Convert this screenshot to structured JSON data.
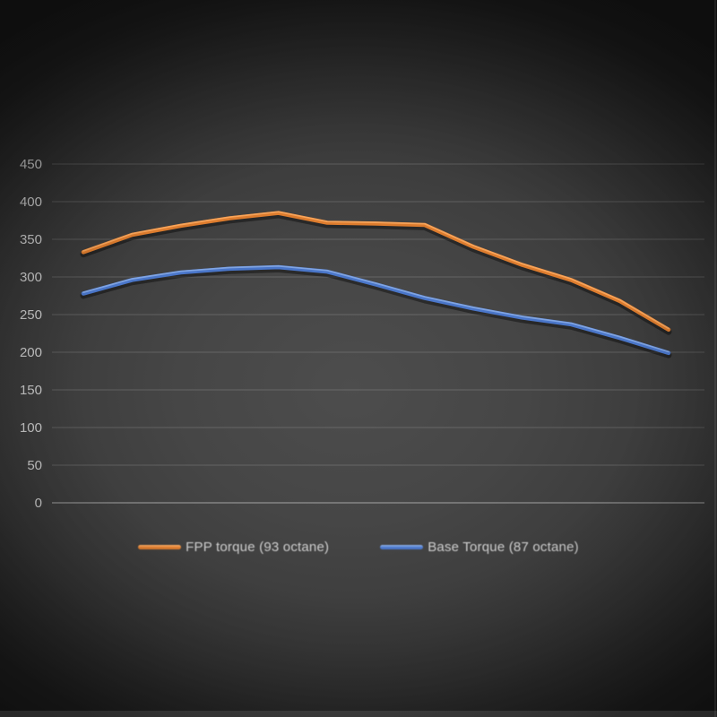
{
  "page": {
    "background_center_color": "#4d4d4d",
    "background_edge_color": "#191919"
  },
  "chart_data": {
    "type": "line",
    "title": "",
    "xlabel": "",
    "ylabel": "",
    "x_axis_labels_visible": false,
    "x": [
      1,
      2,
      3,
      4,
      5,
      6,
      7,
      8,
      9,
      10,
      11,
      12,
      13
    ],
    "series": [
      {
        "name": "FPP torque (93 octane)",
        "color": "#dd7c2e",
        "highlight": "#ffb26a",
        "values": [
          333,
          356,
          368,
          378,
          385,
          372,
          371,
          369,
          340,
          316,
          296,
          268,
          230
        ]
      },
      {
        "name": "Base Torque (87 octane)",
        "color": "#4a76c9",
        "highlight": "#93b4ea",
        "values": [
          278,
          296,
          306,
          311,
          313,
          307,
          290,
          272,
          258,
          246,
          237,
          219,
          199
        ]
      }
    ],
    "ylim": [
      0,
      450
    ],
    "y_ticks": [
      0,
      50,
      100,
      150,
      200,
      250,
      300,
      350,
      400,
      450
    ],
    "y_tick_labels": [
      "0",
      "50",
      "100",
      "150",
      "200",
      "250",
      "300",
      "350",
      "400",
      "450"
    ],
    "grid": true,
    "gridline_color": "rgba(255,255,255,0.11)",
    "zero_line_color": "rgba(255,255,255,0.26)",
    "tick_label_color": "#c9c9c9",
    "legend_position": "bottom"
  }
}
